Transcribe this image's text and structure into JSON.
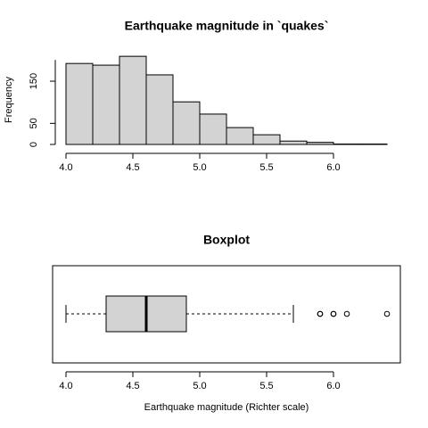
{
  "chart_data": [
    {
      "type": "histogram",
      "title": "Earthquake magnitude in `quakes`",
      "y_label": "Frequency",
      "bins": [
        4.0,
        4.2,
        4.4,
        4.6,
        4.8,
        5.0,
        5.2,
        5.4,
        5.6,
        5.8,
        6.0,
        6.2,
        6.4
      ],
      "values": [
        192,
        188,
        209,
        165,
        101,
        72,
        40,
        23,
        8,
        5,
        1,
        1
      ],
      "color": "#d3d3d3",
      "xlim": [
        4.0,
        6.4
      ],
      "xticks": [
        {
          "value": 4,
          "label": "4.0"
        },
        4.5,
        {
          "value": 5,
          "label": "5.0"
        },
        5.5,
        {
          "value": 6,
          "label": "6.0"
        }
      ],
      "ylim": [
        0,
        215
      ],
      "yticks": [
        0,
        50,
        150
      ]
    },
    {
      "type": "box",
      "title": "Boxplot",
      "x_label": "Earthquake magnitude (Richter scale)",
      "whislo": 4.0,
      "q1": 4.3,
      "med": 4.6,
      "q3": 4.9,
      "whishi": 5.7,
      "outliers": [
        5.9,
        5.9,
        6.0,
        6.0,
        6.1,
        6.4
      ],
      "color": "#d3d3d3",
      "xlim": [
        3.9,
        6.5
      ],
      "xticks": [
        {
          "value": 4,
          "label": "4.0"
        },
        4.5,
        {
          "value": 5,
          "label": "5.0"
        },
        5.5,
        {
          "value": 6,
          "label": "6.0"
        }
      ]
    }
  ]
}
